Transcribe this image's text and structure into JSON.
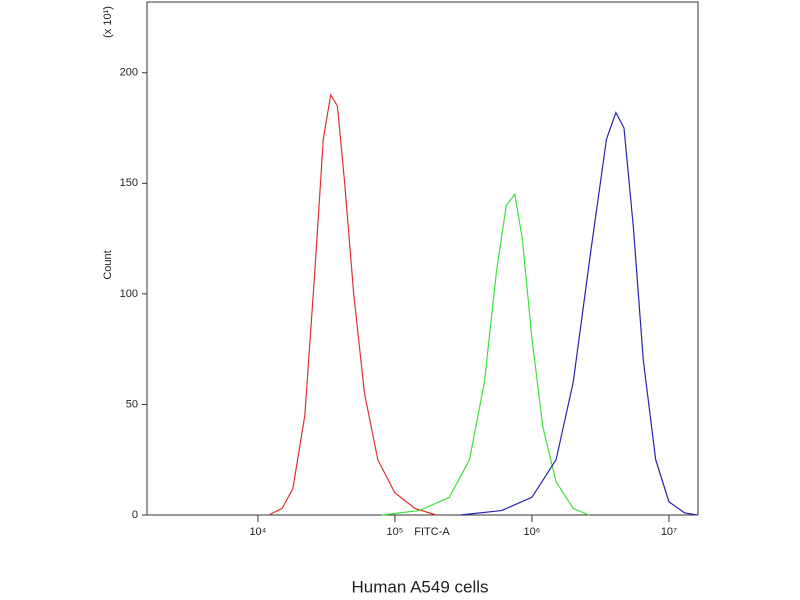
{
  "chart_data": {
    "type": "line",
    "caption": "Human A549 cells",
    "x_label": "FITC-A",
    "y_label": "Count",
    "y_multiplier": "(x 10¹)",
    "xscale": "log",
    "xlim": [
      1550,
      16300000
    ],
    "xticks": [
      {
        "value": 10000,
        "label": "10⁴"
      },
      {
        "value": 100000,
        "label": "10⁵"
      },
      {
        "value": 1000000,
        "label": "10⁶"
      },
      {
        "value": 10000000,
        "label": "10⁷"
      }
    ],
    "ylim": [
      0,
      232
    ],
    "yticks": [
      0,
      50,
      100,
      150,
      200
    ],
    "series": [
      {
        "color": "#e03232",
        "x": [
          12000,
          15000,
          18000,
          22000,
          26000,
          30000,
          34000,
          38000,
          43000,
          50000,
          60000,
          75000,
          100000,
          140000,
          200000
        ],
        "values": [
          0,
          3,
          12,
          45,
          110,
          170,
          190,
          185,
          150,
          100,
          55,
          25,
          10,
          3,
          0
        ]
      },
      {
        "color": "#3ee03e",
        "x": [
          80000,
          150000,
          250000,
          350000,
          450000,
          550000,
          650000,
          750000,
          850000,
          1000000,
          1200000,
          1500000,
          2000000,
          2600000
        ],
        "values": [
          0,
          2,
          8,
          25,
          60,
          110,
          140,
          145,
          125,
          80,
          40,
          15,
          3,
          0
        ]
      },
      {
        "color": "#2424b0",
        "x": [
          300000,
          600000,
          1000000,
          1500000,
          2000000,
          2700000,
          3500000,
          4100000,
          4700000,
          5500000,
          6500000,
          8000000,
          10000000,
          13000000,
          16000000
        ],
        "values": [
          0,
          2,
          8,
          25,
          60,
          120,
          170,
          182,
          175,
          130,
          70,
          25,
          6,
          1,
          0
        ]
      }
    ]
  }
}
